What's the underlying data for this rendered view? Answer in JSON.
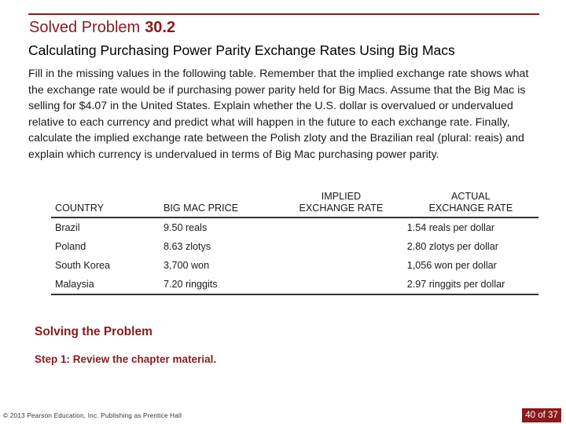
{
  "slide": {
    "title": "Solved Problem",
    "problem_number": "30.2",
    "subtitle": "Calculating Purchasing Power Parity Exchange Rates Using Big Macs",
    "body": "Fill in the missing values in the following table. Remember that the implied exchange rate shows what the exchange rate would be if purchasing power parity held for Big Macs. Assume that the Big Mac is selling for $4.07 in the United States. Explain whether the U.S. dollar is overvalued or undervalued relative to each currency and predict what will happen in the future to each exchange rate. Finally, calculate the implied exchange rate between the Polish zloty and the Brazilian real (plural: reais) and explain which currency is undervalued in terms of Big Mac purchasing power parity."
  },
  "table": {
    "headers": {
      "country": "COUNTRY",
      "price": "BIG MAC PRICE",
      "implied_line1": "IMPLIED",
      "implied_line2": "EXCHANGE RATE",
      "actual_line1": "ACTUAL",
      "actual_line2": "EXCHANGE RATE"
    },
    "rows": [
      {
        "country": "Brazil",
        "price": "9.50 reals",
        "implied": "",
        "actual": "1.54 reals per dollar"
      },
      {
        "country": "Poland",
        "price": "8.63 zlotys",
        "implied": "",
        "actual": "2.80 zlotys per dollar"
      },
      {
        "country": "South Korea",
        "price": "3,700 won",
        "implied": "",
        "actual": "1,056  won per dollar"
      },
      {
        "country": "Malaysia",
        "price": "7.20 ringgits",
        "implied": "",
        "actual": "2.97 ringgits per dollar"
      }
    ]
  },
  "solving": {
    "heading": "Solving the Problem",
    "step1": "Step 1:  Review the chapter material."
  },
  "footer": {
    "copyright": "© 2013 Pearson Education, Inc. Publishing as Prentice Hall",
    "page": "40 of 37"
  },
  "colors": {
    "accent": "#8b1a1a"
  }
}
